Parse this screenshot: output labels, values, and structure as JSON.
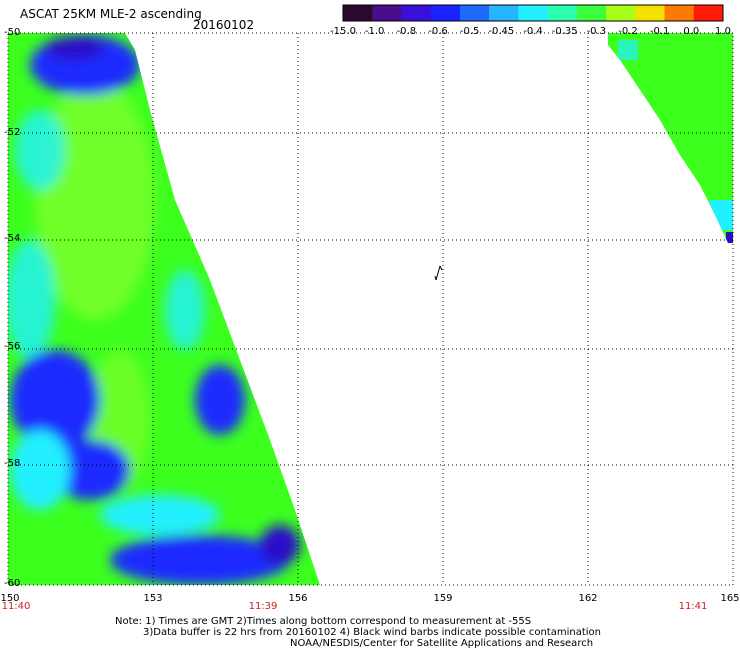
{
  "header": {
    "title": "ASCAT 25KM MLE-2 ascending",
    "date": "20160102"
  },
  "colorbar": {
    "ticks": [
      "-15.0",
      "-1.0",
      "-0.8",
      "-0.6",
      "-0.5",
      "-0.45",
      "-0.4",
      "-0.35",
      "-0.3",
      "-0.2",
      "-0.1",
      "0.0",
      "1.0"
    ],
    "colors": [
      "#2b0a2e",
      "#4a0e8c",
      "#3a10d8",
      "#1a22ff",
      "#1f6bff",
      "#26b6ff",
      "#22f0ff",
      "#2cffb0",
      "#3aff3a",
      "#a8ff1a",
      "#f6e000",
      "#ff7a00",
      "#ff1a0a"
    ]
  },
  "map": {
    "lat_labels": [
      "-50",
      "-52",
      "-54",
      "-56",
      "-58",
      "-60"
    ],
    "lon_labels": [
      "150",
      "153",
      "156",
      "159",
      "162",
      "165"
    ],
    "time_labels": [
      "11:40",
      "11:39",
      "11:41"
    ],
    "lat_range": [
      -60,
      -50
    ],
    "lon_range": [
      150,
      165
    ]
  },
  "notes": {
    "line1": "Note: 1) Times are GMT 2)Times along bottom correspond to measurement at -55S",
    "line2": "3)Data buffer is 22 hrs from 20160102 4) Black wind barbs indicate possible contamination",
    "line3": "NOAA/NESDIS/Center for Satellite Applications and Research"
  },
  "colors": {
    "green": "#3cff1e",
    "yellow_green": "#7dff2a",
    "cyan": "#20f0ff",
    "blue": "#1e2cff",
    "dark_blue": "#2a10c8",
    "purple": "#3a0a80",
    "time_red": "#d0201f"
  }
}
